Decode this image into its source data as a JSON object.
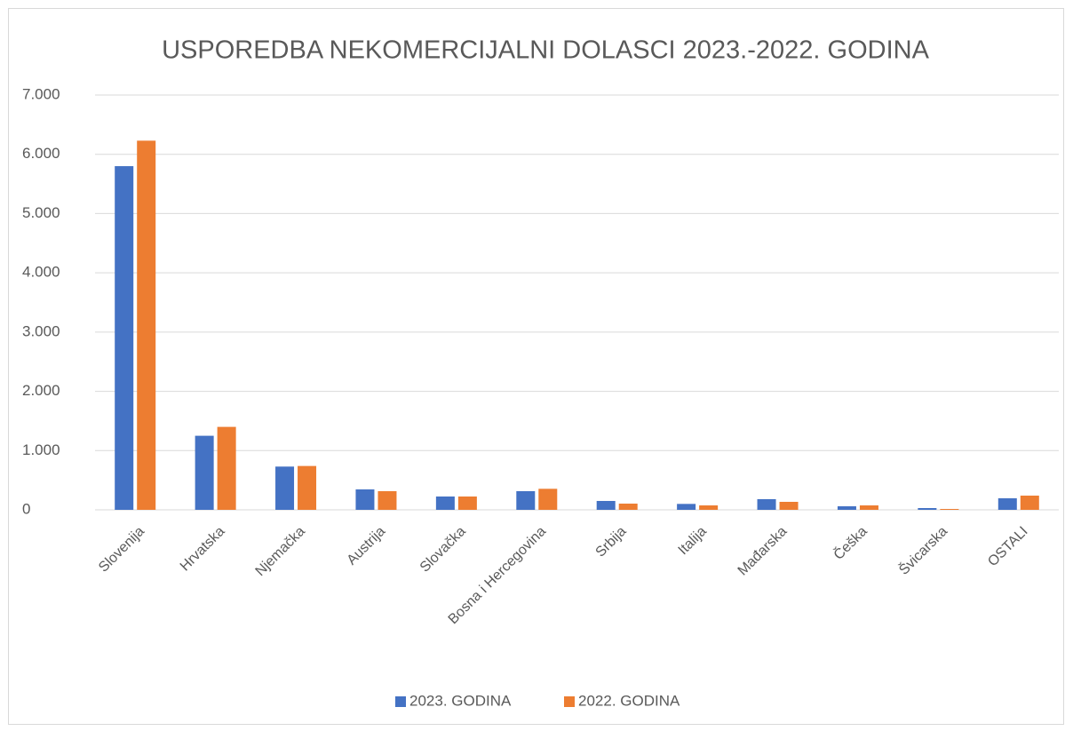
{
  "chart_data": {
    "type": "bar",
    "title": "USPOREDBA NEKOMERCIJALNI DOLASCI 2023.-2022. GODINA",
    "categories": [
      "Slovenija",
      "Hrvatska",
      "Njemačka",
      "Austrija",
      "Slovačka",
      "Bosna i Hercegovina",
      "Srbija",
      "Italija",
      "Mađarska",
      "Češka",
      "Švicarska",
      "OSTALI"
    ],
    "series": [
      {
        "name": "2023. GODINA",
        "color": "#4472c4",
        "values": [
          5800,
          1250,
          730,
          345,
          225,
          315,
          150,
          100,
          180,
          60,
          30,
          195
        ]
      },
      {
        "name": "2022. GODINA",
        "color": "#ed7d31",
        "values": [
          6230,
          1400,
          740,
          315,
          225,
          355,
          105,
          75,
          135,
          75,
          15,
          240
        ]
      }
    ],
    "ylim": [
      0,
      7000
    ],
    "yticks": [
      0,
      {
        "value": 1000,
        "label": "1.000"
      },
      {
        "value": 2000,
        "label": "2.000"
      },
      {
        "value": 3000,
        "label": "3.000"
      },
      {
        "value": 4000,
        "label": "4.000"
      },
      {
        "value": 5000,
        "label": "5.000"
      },
      {
        "value": 6000,
        "label": "6.000"
      },
      {
        "value": 7000,
        "label": "7.000"
      }
    ],
    "grid": true,
    "legend": "bottom"
  }
}
